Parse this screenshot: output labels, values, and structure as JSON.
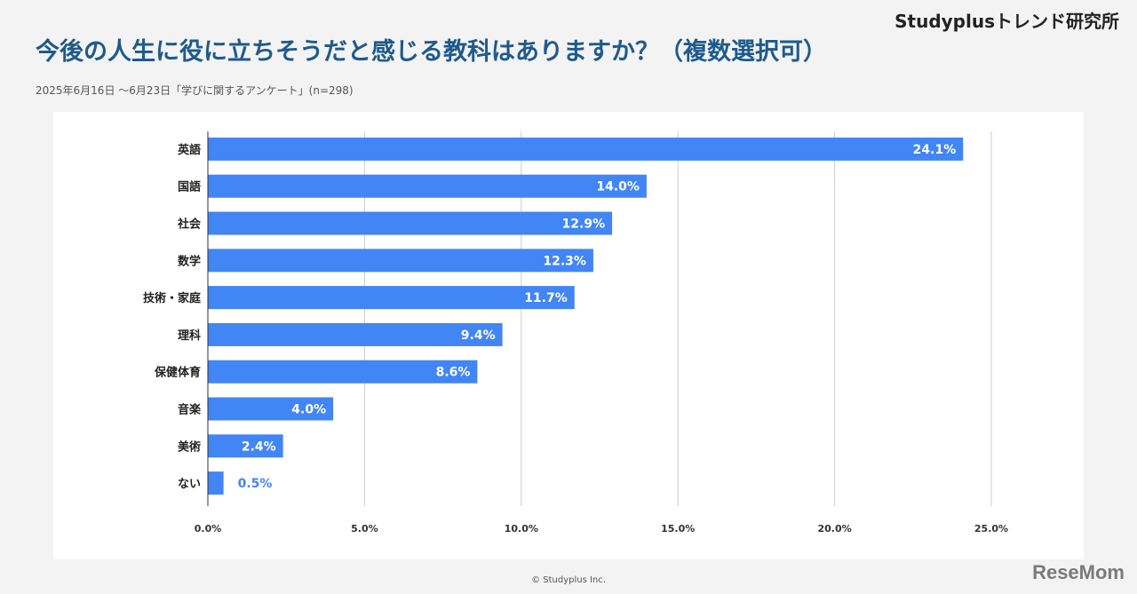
{
  "header": {
    "brand": "Studyplusトレンド研究所",
    "title": "今後の人生に役に立ちそうだと感じる教科はありますか？（複数選択可）",
    "subtitle": "2025年6月16日 ～6月23日「学びに関するアンケート」(n=298)"
  },
  "footer": {
    "copyright": "© Studyplus Inc.",
    "watermark": "ReseMom"
  },
  "colors": {
    "bar": "#4285f4",
    "title": "#1e5a8c",
    "grid": "#cccccc",
    "label_inside": "#ffffff",
    "label_outside": "#4285f4"
  },
  "chart_data": {
    "type": "bar",
    "orientation": "horizontal",
    "categories": [
      "英語",
      "国語",
      "社会",
      "数学",
      "技術・家庭",
      "理科",
      "保健体育",
      "音楽",
      "美術",
      "ない"
    ],
    "values": [
      24.1,
      14.0,
      12.9,
      12.3,
      11.7,
      9.4,
      8.6,
      4.0,
      2.4,
      0.5
    ],
    "data_labels": [
      "24.1%",
      "14.0%",
      "12.9%",
      "12.3%",
      "11.7%",
      "9.4%",
      "8.6%",
      "4.0%",
      "2.4%",
      "0.5%"
    ],
    "xlim": [
      0,
      25
    ],
    "x_ticks": [
      "0.0%",
      "5.0%",
      "10.0%",
      "15.0%",
      "20.0%",
      "25.0%"
    ],
    "grid": true,
    "legend": "none"
  }
}
